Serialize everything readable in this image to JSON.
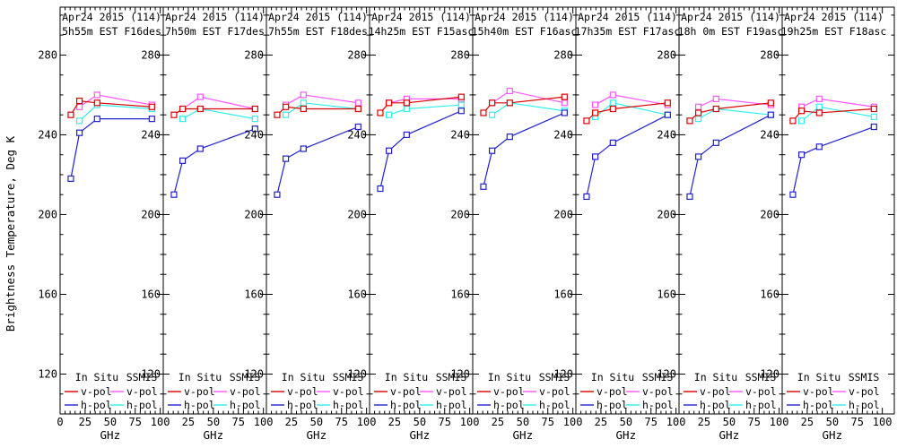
{
  "figure": {
    "ylabel": "Brightness Temperature, Deg K",
    "xlabel": "GHz",
    "background": "#ffffff",
    "axis_color": "#000000",
    "legend": {
      "col1_header": "In Situ",
      "col2_header": "SSMIS",
      "rows": [
        {
          "label": "v-pol",
          "col1_color": "#dd0000",
          "col2_color": "#ff55ff"
        },
        {
          "label": "h-pol",
          "col1_color": "#2222cc",
          "col2_color": "#33eeee"
        }
      ]
    },
    "series_colors": {
      "insitu_vpol": "#dd0000",
      "insitu_hpol": "#2222cc",
      "ssmis_vpol": "#ff55ff",
      "ssmis_hpol": "#33eeee"
    }
  },
  "chart_data": [
    {
      "type": "line",
      "title": "Apr24 2015 (114)",
      "subtitle": "5h55m EST F16des",
      "xlabel": "GHz",
      "ylabel": "Brightness Temperature, Deg K",
      "xlim": [
        0,
        103
      ],
      "ylim": [
        100,
        304
      ],
      "xticks": [
        0,
        25,
        50,
        75,
        100
      ],
      "yticks": [
        120,
        160,
        200,
        240,
        280
      ],
      "series": [
        {
          "name": "SSMIS v-pol",
          "color": "#ff55ff",
          "x": [
            19.35,
            37.0,
            91.655
          ],
          "y": [
            254,
            260,
            255
          ]
        },
        {
          "name": "SSMIS h-pol",
          "color": "#33eeee",
          "x": [
            19.35,
            37.0,
            91.655
          ],
          "y": [
            247,
            255,
            253
          ]
        },
        {
          "name": "In Situ v-pol",
          "color": "#dd0000",
          "x": [
            10.7,
            19.35,
            37.0,
            91.655
          ],
          "y": [
            250,
            257,
            256,
            254
          ]
        },
        {
          "name": "In Situ h-pol",
          "color": "#2222cc",
          "x": [
            10.7,
            19.35,
            37.0,
            91.655
          ],
          "y": [
            218,
            241,
            248,
            248
          ]
        }
      ]
    },
    {
      "type": "line",
      "title": "Apr24 2015 (114)",
      "subtitle": "7h50m EST F17des",
      "xlabel": "GHz",
      "ylabel": "Brightness Temperature, Deg K",
      "xlim": [
        0,
        103
      ],
      "ylim": [
        100,
        304
      ],
      "xticks": [
        25,
        50,
        75,
        100
      ],
      "yticks": [
        120,
        160,
        200,
        240,
        280
      ],
      "series": [
        {
          "name": "SSMIS v-pol",
          "color": "#ff55ff",
          "x": [
            19.35,
            37.0,
            91.655
          ],
          "y": [
            253,
            259,
            253
          ]
        },
        {
          "name": "SSMIS h-pol",
          "color": "#33eeee",
          "x": [
            19.35,
            37.0,
            91.655
          ],
          "y": [
            248,
            253,
            248
          ]
        },
        {
          "name": "In Situ v-pol",
          "color": "#dd0000",
          "x": [
            10.7,
            19.35,
            37.0,
            91.655
          ],
          "y": [
            250,
            253,
            253,
            253
          ]
        },
        {
          "name": "In Situ h-pol",
          "color": "#2222cc",
          "x": [
            10.7,
            19.35,
            37.0,
            91.655
          ],
          "y": [
            210,
            227,
            233,
            243
          ]
        }
      ]
    },
    {
      "type": "line",
      "title": "Apr24 2015 (114)",
      "subtitle": "7h55m EST F18des",
      "xlabel": "GHz",
      "ylabel": "Brightness Temperature, Deg K",
      "xlim": [
        0,
        103
      ],
      "ylim": [
        100,
        304
      ],
      "xticks": [
        25,
        50,
        75,
        100
      ],
      "yticks": [
        120,
        160,
        200,
        240,
        280
      ],
      "series": [
        {
          "name": "SSMIS v-pol",
          "color": "#ff55ff",
          "x": [
            19.35,
            37.0,
            91.655
          ],
          "y": [
            255,
            260,
            256
          ]
        },
        {
          "name": "SSMIS h-pol",
          "color": "#33eeee",
          "x": [
            19.35,
            37.0,
            91.655
          ],
          "y": [
            250,
            256,
            253
          ]
        },
        {
          "name": "In Situ v-pol",
          "color": "#dd0000",
          "x": [
            10.7,
            19.35,
            37.0,
            91.655
          ],
          "y": [
            250,
            254,
            253,
            253
          ]
        },
        {
          "name": "In Situ h-pol",
          "color": "#2222cc",
          "x": [
            10.7,
            19.35,
            37.0,
            91.655
          ],
          "y": [
            210,
            228,
            233,
            244
          ]
        }
      ]
    },
    {
      "type": "line",
      "title": "Apr24 2015 (114)",
      "subtitle": "14h25m EST F15asc",
      "xlabel": "GHz",
      "ylabel": "Brightness Temperature, Deg K",
      "xlim": [
        0,
        103
      ],
      "ylim": [
        100,
        304
      ],
      "xticks": [
        25,
        50,
        75,
        100
      ],
      "yticks": [
        120,
        160,
        200,
        240,
        280
      ],
      "series": [
        {
          "name": "SSMIS v-pol",
          "color": "#ff55ff",
          "x": [
            19.35,
            37.0,
            91.655
          ],
          "y": [
            256,
            258,
            258
          ]
        },
        {
          "name": "SSMIS h-pol",
          "color": "#33eeee",
          "x": [
            19.35,
            37.0,
            91.655
          ],
          "y": [
            250,
            253,
            255
          ]
        },
        {
          "name": "In Situ v-pol",
          "color": "#dd0000",
          "x": [
            10.7,
            19.35,
            37.0,
            91.655
          ],
          "y": [
            251,
            256,
            256,
            259
          ]
        },
        {
          "name": "In Situ h-pol",
          "color": "#2222cc",
          "x": [
            10.7,
            19.35,
            37.0,
            91.655
          ],
          "y": [
            213,
            232,
            240,
            252
          ]
        }
      ]
    },
    {
      "type": "line",
      "title": "Apr24 2015 (114)",
      "subtitle": "15h40m EST F16asc",
      "xlabel": "GHz",
      "ylabel": "Brightness Temperature, Deg K",
      "xlim": [
        0,
        103
      ],
      "ylim": [
        100,
        304
      ],
      "xticks": [
        25,
        50,
        75,
        100
      ],
      "yticks": [
        120,
        160,
        200,
        240,
        280
      ],
      "series": [
        {
          "name": "SSMIS v-pol",
          "color": "#ff55ff",
          "x": [
            19.35,
            37.0,
            91.655
          ],
          "y": [
            256,
            262,
            256
          ]
        },
        {
          "name": "SSMIS h-pol",
          "color": "#33eeee",
          "x": [
            19.35,
            37.0,
            91.655
          ],
          "y": [
            250,
            256,
            252
          ]
        },
        {
          "name": "In Situ v-pol",
          "color": "#dd0000",
          "x": [
            10.7,
            19.35,
            37.0,
            91.655
          ],
          "y": [
            251,
            256,
            256,
            259
          ]
        },
        {
          "name": "In Situ h-pol",
          "color": "#2222cc",
          "x": [
            10.7,
            19.35,
            37.0,
            91.655
          ],
          "y": [
            214,
            232,
            239,
            251
          ]
        }
      ]
    },
    {
      "type": "line",
      "title": "Apr24 2015 (114)",
      "subtitle": "17h35m EST F17asc",
      "xlabel": "GHz",
      "ylabel": "Brightness Temperature, Deg K",
      "xlim": [
        0,
        103
      ],
      "ylim": [
        100,
        304
      ],
      "xticks": [
        25,
        50,
        75,
        100
      ],
      "yticks": [
        120,
        160,
        200,
        240,
        280
      ],
      "series": [
        {
          "name": "SSMIS v-pol",
          "color": "#ff55ff",
          "x": [
            19.35,
            37.0,
            91.655
          ],
          "y": [
            255,
            260,
            255
          ]
        },
        {
          "name": "SSMIS h-pol",
          "color": "#33eeee",
          "x": [
            19.35,
            37.0,
            91.655
          ],
          "y": [
            249,
            256,
            250
          ]
        },
        {
          "name": "In Situ v-pol",
          "color": "#dd0000",
          "x": [
            10.7,
            19.35,
            37.0,
            91.655
          ],
          "y": [
            247,
            251,
            253,
            256
          ]
        },
        {
          "name": "In Situ h-pol",
          "color": "#2222cc",
          "x": [
            10.7,
            19.35,
            37.0,
            91.655
          ],
          "y": [
            209,
            229,
            236,
            250
          ]
        }
      ]
    },
    {
      "type": "line",
      "title": "Apr24 2015 (114)",
      "subtitle": "18h 0m EST F19asc",
      "xlabel": "GHz",
      "ylabel": "Brightness Temperature, Deg K",
      "xlim": [
        0,
        103
      ],
      "ylim": [
        100,
        304
      ],
      "xticks": [
        25,
        50,
        75,
        100
      ],
      "yticks": [
        120,
        160,
        200,
        240,
        280
      ],
      "series": [
        {
          "name": "SSMIS v-pol",
          "color": "#ff55ff",
          "x": [
            19.35,
            37.0,
            91.655
          ],
          "y": [
            254,
            258,
            255
          ]
        },
        {
          "name": "SSMIS h-pol",
          "color": "#33eeee",
          "x": [
            19.35,
            37.0,
            91.655
          ],
          "y": [
            248,
            253,
            250
          ]
        },
        {
          "name": "In Situ v-pol",
          "color": "#dd0000",
          "x": [
            10.7,
            19.35,
            37.0,
            91.655
          ],
          "y": [
            247,
            251,
            253,
            256
          ]
        },
        {
          "name": "In Situ h-pol",
          "color": "#2222cc",
          "x": [
            10.7,
            19.35,
            37.0,
            91.655
          ],
          "y": [
            209,
            229,
            236,
            250
          ]
        }
      ]
    },
    {
      "type": "line",
      "title": "Apr24 2015 (114)",
      "subtitle": "19h25m EST F18asc",
      "xlabel": "GHz",
      "ylabel": "Brightness Temperature, Deg K",
      "xlim": [
        0,
        112
      ],
      "ylim": [
        100,
        304
      ],
      "xticks": [
        25,
        50,
        75,
        100
      ],
      "yticks": [
        120,
        160,
        200,
        240,
        280
      ],
      "series": [
        {
          "name": "SSMIS v-pol",
          "color": "#ff55ff",
          "x": [
            19.35,
            37.0,
            91.655
          ],
          "y": [
            254,
            258,
            254
          ]
        },
        {
          "name": "SSMIS h-pol",
          "color": "#33eeee",
          "x": [
            19.35,
            37.0,
            91.655
          ],
          "y": [
            247,
            254,
            249
          ]
        },
        {
          "name": "In Situ v-pol",
          "color": "#dd0000",
          "x": [
            10.7,
            19.35,
            37.0,
            91.655
          ],
          "y": [
            247,
            252,
            251,
            253
          ]
        },
        {
          "name": "In Situ h-pol",
          "color": "#2222cc",
          "x": [
            10.7,
            19.35,
            37.0,
            91.655
          ],
          "y": [
            210,
            230,
            234,
            244
          ]
        }
      ]
    }
  ]
}
